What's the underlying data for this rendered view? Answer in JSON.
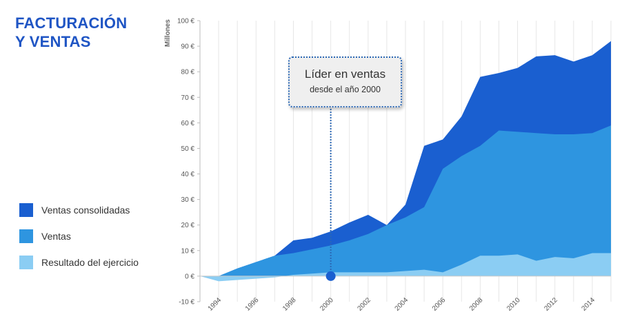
{
  "title": {
    "line1": "FACTURACIÓN",
    "line2": "Y VENTAS"
  },
  "callout": {
    "line1": "Líder en ventas",
    "line2": "desde el año 2000",
    "year": 2000
  },
  "legend": [
    {
      "label": "Ventas consolidadas",
      "color": "#1a5fd0"
    },
    {
      "label": "Ventas",
      "color": "#2e95e0"
    },
    {
      "label": "Resultado del ejercicio",
      "color": "#8bcdf3"
    }
  ],
  "chart_data": {
    "type": "area",
    "ylabel": "Millones",
    "ylim": [
      -10,
      100
    ],
    "xlim": [
      1993,
      2015
    ],
    "y_ticks": [
      -10,
      0,
      10,
      20,
      30,
      40,
      50,
      60,
      70,
      80,
      90,
      100
    ],
    "y_tick_labels": [
      "-10 €",
      "0 €",
      "10 €",
      "20 €",
      "30 €",
      "40 €",
      "50 €",
      "60 €",
      "70 €",
      "80 €",
      "90 €",
      "100 €"
    ],
    "x_ticks": [
      1994,
      1996,
      1998,
      2000,
      2002,
      2004,
      2006,
      2008,
      2010,
      2012,
      2014
    ],
    "x_tick_labels": [
      "1994",
      "1996",
      "1998",
      "2000",
      "2002",
      "2004",
      "2006",
      "2008",
      "2010",
      "2012",
      "2014"
    ],
    "grid": "vertical",
    "x": [
      1993,
      1994,
      1995,
      1996,
      1997,
      1998,
      1999,
      2000,
      2001,
      2002,
      2003,
      2004,
      2005,
      2006,
      2007,
      2008,
      2009,
      2010,
      2011,
      2012,
      2013,
      2014,
      2015
    ],
    "series": [
      {
        "name": "Ventas consolidadas",
        "color": "#1a5fd0",
        "values": [
          0,
          0,
          3,
          5.5,
          8,
          14,
          15,
          17.5,
          21,
          24,
          20,
          28,
          51,
          53.5,
          62.5,
          78,
          79.5,
          81.5,
          86,
          86.5,
          84,
          86.5,
          92
        ]
      },
      {
        "name": "Ventas",
        "color": "#2e95e0",
        "values": [
          0,
          0,
          3,
          5.5,
          8,
          9,
          10.5,
          12,
          14,
          16.5,
          20,
          23,
          27,
          42,
          47,
          51,
          57,
          56.5,
          56,
          55.5,
          55.5,
          56,
          59
        ]
      },
      {
        "name": "Resultado del ejercicio",
        "color": "#8bcdf3",
        "values": [
          0,
          -2,
          -1.5,
          -1,
          -0.5,
          0.5,
          1,
          1.5,
          1.5,
          1.5,
          1.5,
          2,
          2.5,
          1.5,
          4.5,
          8,
          8,
          8.5,
          6,
          7.5,
          7,
          9,
          9
        ]
      }
    ]
  }
}
